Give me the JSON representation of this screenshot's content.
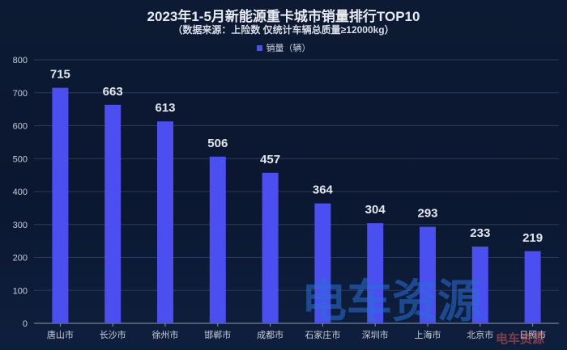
{
  "chart_data": {
    "type": "bar",
    "title": "2023年1-5月新能源重卡城市销量排行TOP10",
    "subtitle": "（数据来源：上险数 仅统计车辆总质量≥12000kg）",
    "categories": [
      "唐山市",
      "长沙市",
      "徐州市",
      "邯郸市",
      "成都市",
      "石家庄市",
      "深圳市",
      "上海市",
      "北京市",
      "日照市"
    ],
    "series": [
      {
        "name": "销量（辆）",
        "values": [
          715,
          663,
          613,
          506,
          457,
          364,
          304,
          293,
          233,
          219
        ]
      }
    ],
    "ylim": [
      0,
      800
    ],
    "yticks": [
      0,
      100,
      200,
      300,
      400,
      500,
      600,
      700,
      800
    ],
    "legend_position": "top-center",
    "grid": true,
    "bar_color": "#4b4ff0"
  },
  "watermark": {
    "text": "电车资源",
    "small_text": "电车资源"
  }
}
